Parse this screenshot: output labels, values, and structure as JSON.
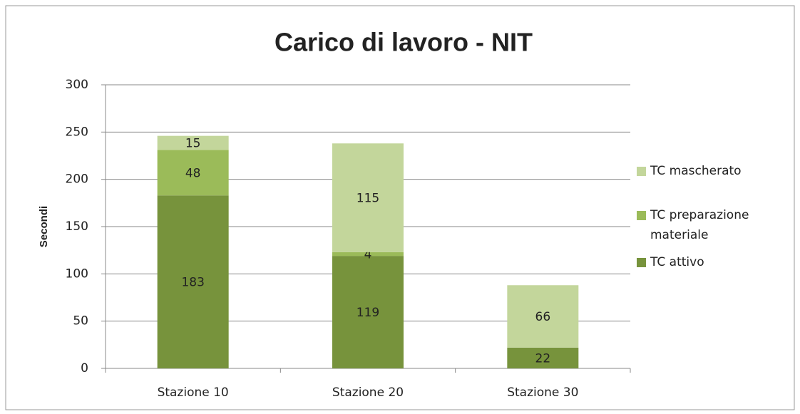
{
  "chart_data": {
    "type": "stacked_bar",
    "title": "Carico di lavoro - NIT",
    "ylabel": "Secondi",
    "categories": [
      "Stazione 10",
      "Stazione 20",
      "Stazione 30"
    ],
    "series": [
      {
        "name": "TC attivo",
        "color": "#77933c",
        "values": [
          183,
          119,
          22
        ]
      },
      {
        "name": "TC preparazione materiale",
        "color": "#9bbb59",
        "values": [
          48,
          4,
          null
        ]
      },
      {
        "name": "TC mascherato",
        "color": "#c3d69b",
        "values": [
          15,
          115,
          66
        ]
      }
    ],
    "ylim": [
      0,
      300
    ],
    "yticks": [
      0,
      50,
      100,
      150,
      200,
      250,
      300
    ],
    "grid": true,
    "legend": "right"
  }
}
